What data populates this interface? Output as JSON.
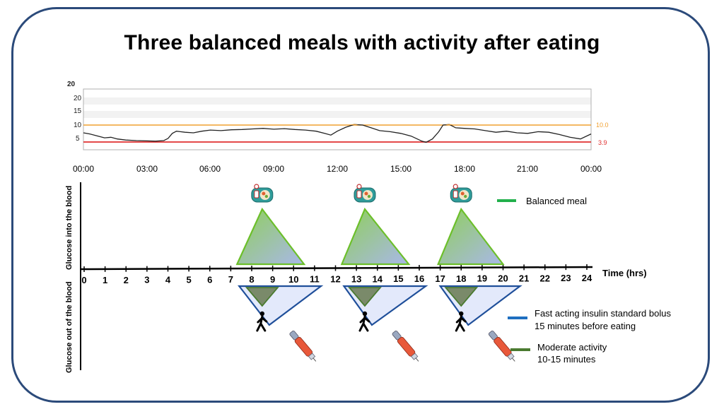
{
  "title": "Three balanced meals with activity after eating",
  "cgm": {
    "y_ticks_top": "20",
    "y_ticks": [
      "20",
      "15",
      "10",
      "5"
    ],
    "x_ticks": [
      "00:00",
      "03:00",
      "06:00",
      "09:00",
      "12:00",
      "15:00",
      "18:00",
      "21:00",
      "00:00"
    ],
    "high_threshold": 10.0,
    "high_label": "10.0",
    "low_threshold": 3.9,
    "low_label": "3.9",
    "ylim": [
      0,
      22
    ],
    "glucose_trace": [
      [
        0,
        7.2
      ],
      [
        0.3,
        6.8
      ],
      [
        0.7,
        6.0
      ],
      [
        1.0,
        5.4
      ],
      [
        1.3,
        5.6
      ],
      [
        1.6,
        5.0
      ],
      [
        2.0,
        4.6
      ],
      [
        2.5,
        4.4
      ],
      [
        3.0,
        4.3
      ],
      [
        3.4,
        4.2
      ],
      [
        3.8,
        4.4
      ],
      [
        4.0,
        5.2
      ],
      [
        4.2,
        7.0
      ],
      [
        4.4,
        7.8
      ],
      [
        4.8,
        7.4
      ],
      [
        5.2,
        7.2
      ],
      [
        5.6,
        7.8
      ],
      [
        6.0,
        8.2
      ],
      [
        6.5,
        8.0
      ],
      [
        7.0,
        8.3
      ],
      [
        7.5,
        8.4
      ],
      [
        8.0,
        8.6
      ],
      [
        8.5,
        8.8
      ],
      [
        9.0,
        8.5
      ],
      [
        9.5,
        8.7
      ],
      [
        10.0,
        8.4
      ],
      [
        10.5,
        8.2
      ],
      [
        11.0,
        7.8
      ],
      [
        11.4,
        7.0
      ],
      [
        11.7,
        6.4
      ],
      [
        12.0,
        7.8
      ],
      [
        12.4,
        9.2
      ],
      [
        12.8,
        10.2
      ],
      [
        13.2,
        10.0
      ],
      [
        13.6,
        9.0
      ],
      [
        14.0,
        8.0
      ],
      [
        14.5,
        7.6
      ],
      [
        15.0,
        7.0
      ],
      [
        15.5,
        6.0
      ],
      [
        16.0,
        4.2
      ],
      [
        16.2,
        3.8
      ],
      [
        16.5,
        5.0
      ],
      [
        16.8,
        7.6
      ],
      [
        17.0,
        10.0
      ],
      [
        17.3,
        10.2
      ],
      [
        17.6,
        9.0
      ],
      [
        18.0,
        8.8
      ],
      [
        18.5,
        8.6
      ],
      [
        19.0,
        8.0
      ],
      [
        19.5,
        7.4
      ],
      [
        20.0,
        7.8
      ],
      [
        20.5,
        7.2
      ],
      [
        21.0,
        7.0
      ],
      [
        21.5,
        7.6
      ],
      [
        22.0,
        7.4
      ],
      [
        22.5,
        6.6
      ],
      [
        23.0,
        5.6
      ],
      [
        23.5,
        5.0
      ],
      [
        24.0,
        6.8
      ]
    ]
  },
  "timeline": {
    "y_label_top": "Glucose into the blood",
    "y_label_bottom": "Glucose out of the blood",
    "x_label": "Time (hrs)",
    "hours": [
      "0",
      "1",
      "2",
      "3",
      "4",
      "5",
      "6",
      "7",
      "8",
      "9",
      "10",
      "11",
      "12",
      "13",
      "14",
      "15",
      "16",
      "17",
      "18",
      "19",
      "20",
      "21",
      "22",
      "23",
      "24"
    ],
    "meals": [
      {
        "start": 7.3,
        "peak": 8.5,
        "end": 10.5
      },
      {
        "start": 12.3,
        "peak": 13.4,
        "end": 15.5
      },
      {
        "start": 16.9,
        "peak": 18.0,
        "end": 20.0
      }
    ]
  },
  "legend": {
    "meal": "Balanced meal",
    "insulin_line1": "Fast acting insulin standard bolus",
    "insulin_line2": "15 minutes before eating",
    "activity_line1": "Moderate activity",
    "activity_line2": "10-15 minutes"
  },
  "colors": {
    "meal": "#22b04c",
    "insulin": "#1f6fc0",
    "activity": "#4a7a30",
    "high": "#f0a030",
    "low": "#e03030"
  }
}
